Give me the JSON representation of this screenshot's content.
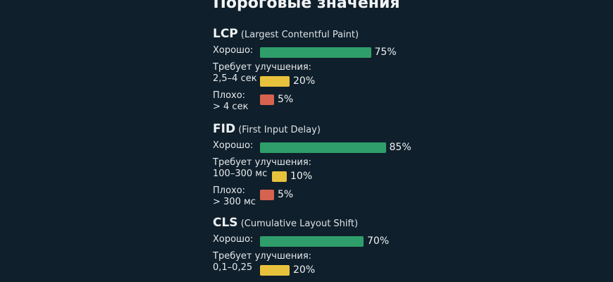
{
  "title": "Пороговые значения",
  "chart_data": {
    "type": "bar",
    "groups": [
      {
        "abbr": "LCP",
        "full": "(Largest Contentful Paint)",
        "rows": [
          {
            "label": "Хорошо:",
            "sublabel": "",
            "value": 75,
            "value_label": "75%",
            "status": "good"
          },
          {
            "label": "Требует улучшения:",
            "sublabel": "2,5–4 сек",
            "value": 20,
            "value_label": "20%",
            "status": "mid"
          },
          {
            "label": "Плохо:",
            "sublabel": "> 4 сек",
            "value": 5,
            "value_label": "5%",
            "status": "bad"
          }
        ]
      },
      {
        "abbr": "FID",
        "full": "(First Input Delay)",
        "rows": [
          {
            "label": "Хорошо:",
            "sublabel": "",
            "value": 85,
            "value_label": "85%",
            "status": "good"
          },
          {
            "label": "Требует улучшения:",
            "sublabel": "100–300 мс",
            "value": 10,
            "value_label": "10%",
            "status": "mid"
          },
          {
            "label": "Плохо:",
            "sublabel": "> 300 мс",
            "value": 5,
            "value_label": "5%",
            "status": "bad"
          }
        ]
      },
      {
        "abbr": "CLS",
        "full": "(Cumulative Layout Shift)",
        "rows": [
          {
            "label": "Хорошо:",
            "sublabel": "",
            "value": 70,
            "value_label": "70%",
            "status": "good"
          },
          {
            "label": "Требует улучшения:",
            "sublabel": "0,1–0,25",
            "value": 20,
            "value_label": "20%",
            "status": "mid"
          }
        ]
      }
    ],
    "colors": {
      "good": "#2f9e6a",
      "mid": "#e8c23c",
      "bad": "#d6634f"
    }
  }
}
